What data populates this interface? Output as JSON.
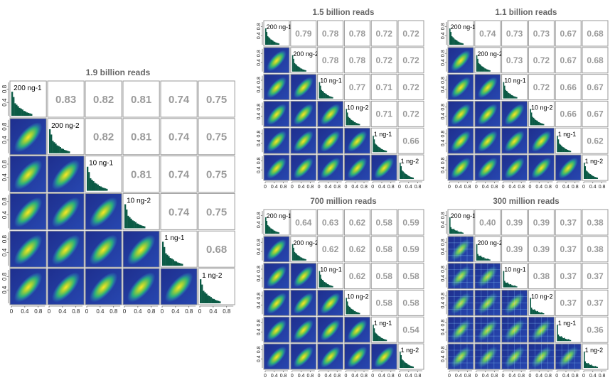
{
  "chart_data": [
    {
      "type": "heatmap",
      "title": "1.9 billion reads",
      "samples": [
        "200 ng-1",
        "200 ng-2",
        "10 ng-1",
        "10 ng-2",
        "1 ng-1",
        "1 ng-2"
      ],
      "correlations": [
        [
          "0.83",
          "0.82",
          "0.81",
          "0.74",
          "0.75"
        ],
        [
          "0.82",
          "0.81",
          "0.74",
          "0.75"
        ],
        [
          "0.81",
          "0.74",
          "0.75"
        ],
        [
          "0.74",
          "0.75"
        ],
        [
          "0.68"
        ]
      ],
      "x_ticks": [
        "0",
        "0.4",
        "0.8"
      ],
      "y_ticks": [
        "0.4",
        "0.8"
      ],
      "xlim": [
        0,
        1
      ],
      "ylim": [
        0,
        1
      ]
    },
    {
      "type": "heatmap",
      "title": "1.5 billion reads",
      "samples": [
        "200 ng-1",
        "200 ng-2",
        "10 ng-1",
        "10 ng-2",
        "1 ng-1",
        "1 ng-2"
      ],
      "correlations": [
        [
          "0.79",
          "0.78",
          "0.78",
          "0.72",
          "0.72"
        ],
        [
          "0.78",
          "0.78",
          "0.72",
          "0.72"
        ],
        [
          "0.77",
          "0.71",
          "0.72"
        ],
        [
          "0.71",
          "0.72"
        ],
        [
          "0.66"
        ]
      ],
      "x_ticks": [
        "0",
        "0.4",
        "0.8"
      ],
      "y_ticks": [
        "0.4",
        "0.8"
      ],
      "xlim": [
        0,
        1
      ],
      "ylim": [
        0,
        1
      ]
    },
    {
      "type": "heatmap",
      "title": "1.1 billion reads",
      "samples": [
        "200 ng-1",
        "200 ng-2",
        "10 ng-1",
        "10 ng-2",
        "1 ng-1",
        "1 ng-2"
      ],
      "correlations": [
        [
          "0.74",
          "0.73",
          "0.73",
          "0.67",
          "0.68"
        ],
        [
          "0.73",
          "0.72",
          "0.67",
          "0.68"
        ],
        [
          "0.72",
          "0.66",
          "0.67"
        ],
        [
          "0.66",
          "0.67"
        ],
        [
          "0.62"
        ]
      ],
      "x_ticks": [
        "0",
        "0.4",
        "0.8"
      ],
      "y_ticks": [
        "0.4",
        "0.8"
      ],
      "xlim": [
        0,
        1
      ],
      "ylim": [
        0,
        1
      ]
    },
    {
      "type": "heatmap",
      "title": "700 million reads",
      "samples": [
        "200 ng-1",
        "200 ng-2",
        "10 ng-1",
        "10 ng-2",
        "1 ng-1",
        "1 ng-2"
      ],
      "correlations": [
        [
          "0.64",
          "0.63",
          "0.62",
          "0.58",
          "0.59"
        ],
        [
          "0.62",
          "0.62",
          "0.58",
          "0.59"
        ],
        [
          "0.62",
          "0.58",
          "0.58"
        ],
        [
          "0.58",
          "0.58"
        ],
        [
          "0.54"
        ]
      ],
      "x_ticks": [
        "0",
        "0.4",
        "0.8"
      ],
      "y_ticks": [
        "0.4",
        "0.8"
      ],
      "xlim": [
        0,
        1
      ],
      "ylim": [
        0,
        1
      ]
    },
    {
      "type": "heatmap",
      "title": "300 million reads",
      "samples": [
        "200 ng-1",
        "200 ng-2",
        "10 ng-1",
        "10 ng-2",
        "1 ng-1",
        "1 ng-2"
      ],
      "correlations": [
        [
          "0.40",
          "0.39",
          "0.39",
          "0.37",
          "0.38"
        ],
        [
          "0.39",
          "0.39",
          "0.37",
          "0.38"
        ],
        [
          "0.38",
          "0.37",
          "0.37"
        ],
        [
          "0.37",
          "0.37"
        ],
        [
          "0.36"
        ]
      ],
      "x_ticks": [
        "0",
        "0.4",
        "0.8"
      ],
      "y_ticks": [
        "0.4",
        "0.8"
      ],
      "xlim": [
        0,
        1
      ],
      "ylim": [
        0,
        1
      ]
    }
  ]
}
